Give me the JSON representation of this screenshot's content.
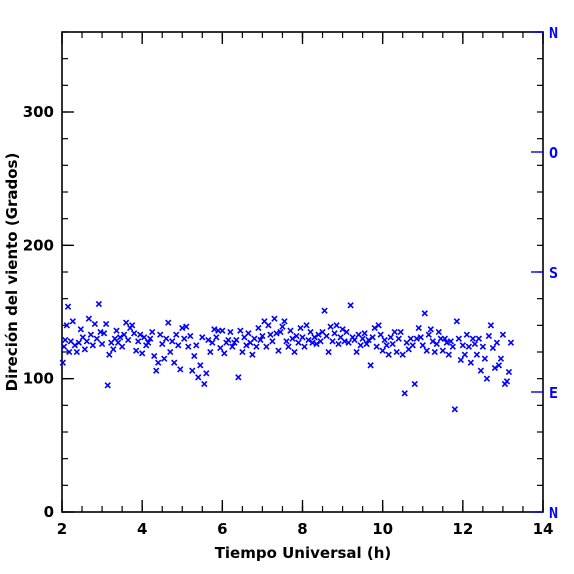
{
  "colors": {
    "marker": "#0000ff",
    "compass": "#0000ff",
    "axis": "#000000"
  },
  "chart_data": {
    "type": "scatter",
    "title": "",
    "xlabel": "Tiempo Universal (h)",
    "ylabel": "Direción del viento (Grados)",
    "xlim": [
      2,
      14
    ],
    "ylim": [
      0,
      360
    ],
    "x_ticks": [
      2,
      4,
      6,
      8,
      10,
      12,
      14
    ],
    "y_ticks": [
      0,
      100,
      200,
      300
    ],
    "x_minor_step": 0.5,
    "y_minor_step": 20,
    "grid": false,
    "marker": "x",
    "right_axis": {
      "labels": [
        {
          "value": 0,
          "label": "N"
        },
        {
          "value": 90,
          "label": "E"
        },
        {
          "value": 180,
          "label": "S"
        },
        {
          "value": 270,
          "label": "O"
        },
        {
          "value": 360,
          "label": "N"
        }
      ]
    },
    "series": [
      {
        "points": [
          [
            2.02,
            112
          ],
          [
            2.05,
            124
          ],
          [
            2.08,
            129
          ],
          [
            2.12,
            140
          ],
          [
            2.15,
            154
          ],
          [
            2.18,
            120
          ],
          [
            2.22,
            128
          ],
          [
            2.27,
            143
          ],
          [
            2.32,
            125
          ],
          [
            2.37,
            120
          ],
          [
            2.42,
            127
          ],
          [
            2.47,
            137
          ],
          [
            2.52,
            131
          ],
          [
            2.57,
            122
          ],
          [
            2.62,
            128
          ],
          [
            2.67,
            145
          ],
          [
            2.72,
            133
          ],
          [
            2.77,
            125
          ],
          [
            2.82,
            141
          ],
          [
            2.87,
            130
          ],
          [
            2.92,
            156
          ],
          [
            2.96,
            135
          ],
          [
            3.0,
            126
          ],
          [
            3.05,
            134
          ],
          [
            3.1,
            141
          ],
          [
            3.14,
            95
          ],
          [
            3.18,
            118
          ],
          [
            3.23,
            127
          ],
          [
            3.28,
            122
          ],
          [
            3.32,
            130
          ],
          [
            3.36,
            136
          ],
          [
            3.4,
            127
          ],
          [
            3.45,
            131
          ],
          [
            3.5,
            124
          ],
          [
            3.55,
            133
          ],
          [
            3.6,
            142
          ],
          [
            3.65,
            129
          ],
          [
            3.7,
            138
          ],
          [
            3.75,
            140
          ],
          [
            3.8,
            134
          ],
          [
            3.85,
            121
          ],
          [
            3.9,
            128
          ],
          [
            3.95,
            133
          ],
          [
            4.0,
            119
          ],
          [
            4.05,
            131
          ],
          [
            4.1,
            125
          ],
          [
            4.15,
            127
          ],
          [
            4.2,
            130
          ],
          [
            4.25,
            135
          ],
          [
            4.3,
            117
          ],
          [
            4.35,
            106
          ],
          [
            4.4,
            112
          ],
          [
            4.45,
            133
          ],
          [
            4.5,
            126
          ],
          [
            4.55,
            115
          ],
          [
            4.6,
            130
          ],
          [
            4.65,
            142
          ],
          [
            4.7,
            120
          ],
          [
            4.75,
            128
          ],
          [
            4.8,
            112
          ],
          [
            4.85,
            133
          ],
          [
            4.9,
            125
          ],
          [
            4.95,
            107
          ],
          [
            5.0,
            138
          ],
          [
            5.05,
            130
          ],
          [
            5.1,
            139
          ],
          [
            5.15,
            124
          ],
          [
            5.2,
            132
          ],
          [
            5.25,
            106
          ],
          [
            5.3,
            117
          ],
          [
            5.35,
            125
          ],
          [
            5.4,
            101
          ],
          [
            5.45,
            110
          ],
          [
            5.5,
            131
          ],
          [
            5.55,
            96
          ],
          [
            5.6,
            104
          ],
          [
            5.65,
            129
          ],
          [
            5.7,
            120
          ],
          [
            5.75,
            127
          ],
          [
            5.8,
            137
          ],
          [
            5.85,
            131
          ],
          [
            5.9,
            136
          ],
          [
            5.95,
            123
          ],
          [
            6.0,
            136
          ],
          [
            6.05,
            119
          ],
          [
            6.1,
            127
          ],
          [
            6.15,
            129
          ],
          [
            6.2,
            135
          ],
          [
            6.25,
            124
          ],
          [
            6.3,
            127
          ],
          [
            6.35,
            129
          ],
          [
            6.4,
            101
          ],
          [
            6.45,
            136
          ],
          [
            6.5,
            120
          ],
          [
            6.55,
            131
          ],
          [
            6.6,
            125
          ],
          [
            6.65,
            134
          ],
          [
            6.7,
            127
          ],
          [
            6.75,
            118
          ],
          [
            6.8,
            130
          ],
          [
            6.85,
            124
          ],
          [
            6.9,
            138
          ],
          [
            6.95,
            129
          ],
          [
            7.0,
            132
          ],
          [
            7.05,
            143
          ],
          [
            7.1,
            124
          ],
          [
            7.15,
            140
          ],
          [
            7.2,
            133
          ],
          [
            7.25,
            128
          ],
          [
            7.3,
            145
          ],
          [
            7.35,
            134
          ],
          [
            7.4,
            121
          ],
          [
            7.45,
            135
          ],
          [
            7.5,
            139
          ],
          [
            7.55,
            143
          ],
          [
            7.6,
            128
          ],
          [
            7.65,
            124
          ],
          [
            7.7,
            136
          ],
          [
            7.75,
            130
          ],
          [
            7.8,
            120
          ],
          [
            7.85,
            132
          ],
          [
            7.9,
            127
          ],
          [
            7.95,
            138
          ],
          [
            8.0,
            131
          ],
          [
            8.05,
            124
          ],
          [
            8.1,
            140
          ],
          [
            8.15,
            129
          ],
          [
            8.2,
            135
          ],
          [
            8.25,
            127
          ],
          [
            8.3,
            131
          ],
          [
            8.35,
            126
          ],
          [
            8.4,
            133
          ],
          [
            8.45,
            128
          ],
          [
            8.5,
            135
          ],
          [
            8.55,
            151
          ],
          [
            8.6,
            132
          ],
          [
            8.65,
            120
          ],
          [
            8.7,
            139
          ],
          [
            8.75,
            128
          ],
          [
            8.8,
            134
          ],
          [
            8.85,
            140
          ],
          [
            8.9,
            126
          ],
          [
            8.95,
            131
          ],
          [
            9.0,
            137
          ],
          [
            9.05,
            128
          ],
          [
            9.1,
            135
          ],
          [
            9.15,
            127
          ],
          [
            9.2,
            155
          ],
          [
            9.25,
            131
          ],
          [
            9.3,
            129
          ],
          [
            9.35,
            120
          ],
          [
            9.4,
            133
          ],
          [
            9.45,
            125
          ],
          [
            9.5,
            130
          ],
          [
            9.55,
            134
          ],
          [
            9.6,
            126
          ],
          [
            9.65,
            129
          ],
          [
            9.7,
            110
          ],
          [
            9.75,
            131
          ],
          [
            9.8,
            138
          ],
          [
            9.85,
            124
          ],
          [
            9.9,
            140
          ],
          [
            9.95,
            133
          ],
          [
            10.0,
            121
          ],
          [
            10.05,
            129
          ],
          [
            10.1,
            125
          ],
          [
            10.15,
            118
          ],
          [
            10.2,
            131
          ],
          [
            10.25,
            126
          ],
          [
            10.3,
            135
          ],
          [
            10.35,
            120
          ],
          [
            10.4,
            130
          ],
          [
            10.45,
            135
          ],
          [
            10.5,
            118
          ],
          [
            10.55,
            89
          ],
          [
            10.6,
            127
          ],
          [
            10.65,
            122
          ],
          [
            10.7,
            130
          ],
          [
            10.75,
            125
          ],
          [
            10.8,
            96
          ],
          [
            10.85,
            130
          ],
          [
            10.9,
            138
          ],
          [
            10.95,
            131
          ],
          [
            11.0,
            125
          ],
          [
            11.05,
            149
          ],
          [
            11.1,
            121
          ],
          [
            11.15,
            133
          ],
          [
            11.2,
            137
          ],
          [
            11.25,
            128
          ],
          [
            11.3,
            120
          ],
          [
            11.35,
            126
          ],
          [
            11.4,
            135
          ],
          [
            11.45,
            130
          ],
          [
            11.5,
            121
          ],
          [
            11.55,
            130
          ],
          [
            11.6,
            127
          ],
          [
            11.65,
            118
          ],
          [
            11.7,
            128
          ],
          [
            11.75,
            124
          ],
          [
            11.8,
            77
          ],
          [
            11.85,
            143
          ],
          [
            11.9,
            130
          ],
          [
            11.95,
            114
          ],
          [
            12.0,
            125
          ],
          [
            12.05,
            118
          ],
          [
            12.1,
            133
          ],
          [
            12.15,
            124
          ],
          [
            12.2,
            112
          ],
          [
            12.25,
            130
          ],
          [
            12.3,
            126
          ],
          [
            12.35,
            118
          ],
          [
            12.4,
            130
          ],
          [
            12.45,
            106
          ],
          [
            12.5,
            124
          ],
          [
            12.55,
            115
          ],
          [
            12.6,
            100
          ],
          [
            12.65,
            132
          ],
          [
            12.7,
            140
          ],
          [
            12.75,
            123
          ],
          [
            12.8,
            108
          ],
          [
            12.85,
            127
          ],
          [
            12.9,
            110
          ],
          [
            12.95,
            115
          ],
          [
            13.0,
            133
          ],
          [
            13.05,
            96
          ],
          [
            13.1,
            98
          ],
          [
            13.15,
            105
          ],
          [
            13.2,
            127
          ]
        ]
      }
    ]
  }
}
